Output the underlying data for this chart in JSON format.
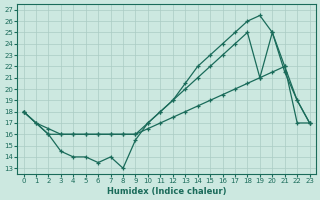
{
  "xlabel": "Humidex (Indice chaleur)",
  "xlim": [
    0,
    23
  ],
  "ylim": [
    13,
    27
  ],
  "xticks": [
    0,
    1,
    2,
    3,
    4,
    5,
    6,
    7,
    8,
    9,
    10,
    11,
    12,
    13,
    14,
    15,
    16,
    17,
    18,
    19,
    20,
    21,
    22,
    23
  ],
  "yticks": [
    13,
    14,
    15,
    16,
    17,
    18,
    19,
    20,
    21,
    22,
    23,
    24,
    25,
    26,
    27
  ],
  "bg_color": "#cce8e0",
  "line_color": "#1a6b5a",
  "grid_color": "#aaccc4",
  "line1_x": [
    0,
    1,
    2,
    3,
    4,
    5,
    6,
    7,
    8,
    9,
    10,
    11,
    12,
    13,
    14,
    15,
    16,
    17,
    18,
    19,
    20,
    21,
    22,
    23
  ],
  "line1_y": [
    18,
    17,
    16.5,
    16,
    16,
    16,
    16,
    16,
    16,
    16,
    16.5,
    17,
    17.5,
    18,
    18.5,
    19,
    19.5,
    20,
    20.5,
    21,
    21.5,
    22,
    17,
    17
  ],
  "line2_x": [
    0,
    1,
    2,
    3,
    4,
    5,
    6,
    7,
    8,
    9,
    10,
    11,
    12,
    13,
    14,
    15,
    16,
    17,
    18,
    19,
    20,
    21,
    22,
    23
  ],
  "line2_y": [
    18,
    17,
    16,
    16,
    16,
    16,
    16,
    16,
    16,
    16,
    17,
    18,
    19,
    20,
    21,
    22,
    23,
    24,
    25,
    21,
    25,
    22,
    19,
    17
  ],
  "line3_x": [
    0,
    2,
    3,
    4,
    5,
    6,
    7,
    8,
    9,
    10,
    11,
    12,
    13,
    14,
    15,
    16,
    17,
    18,
    19,
    20,
    21,
    22,
    23
  ],
  "line3_y": [
    18,
    16,
    14.5,
    14,
    14,
    13.5,
    14,
    13,
    15.5,
    17,
    18,
    19,
    20.5,
    22,
    23,
    24,
    25,
    26,
    26.5,
    25,
    21.5,
    19,
    17
  ]
}
